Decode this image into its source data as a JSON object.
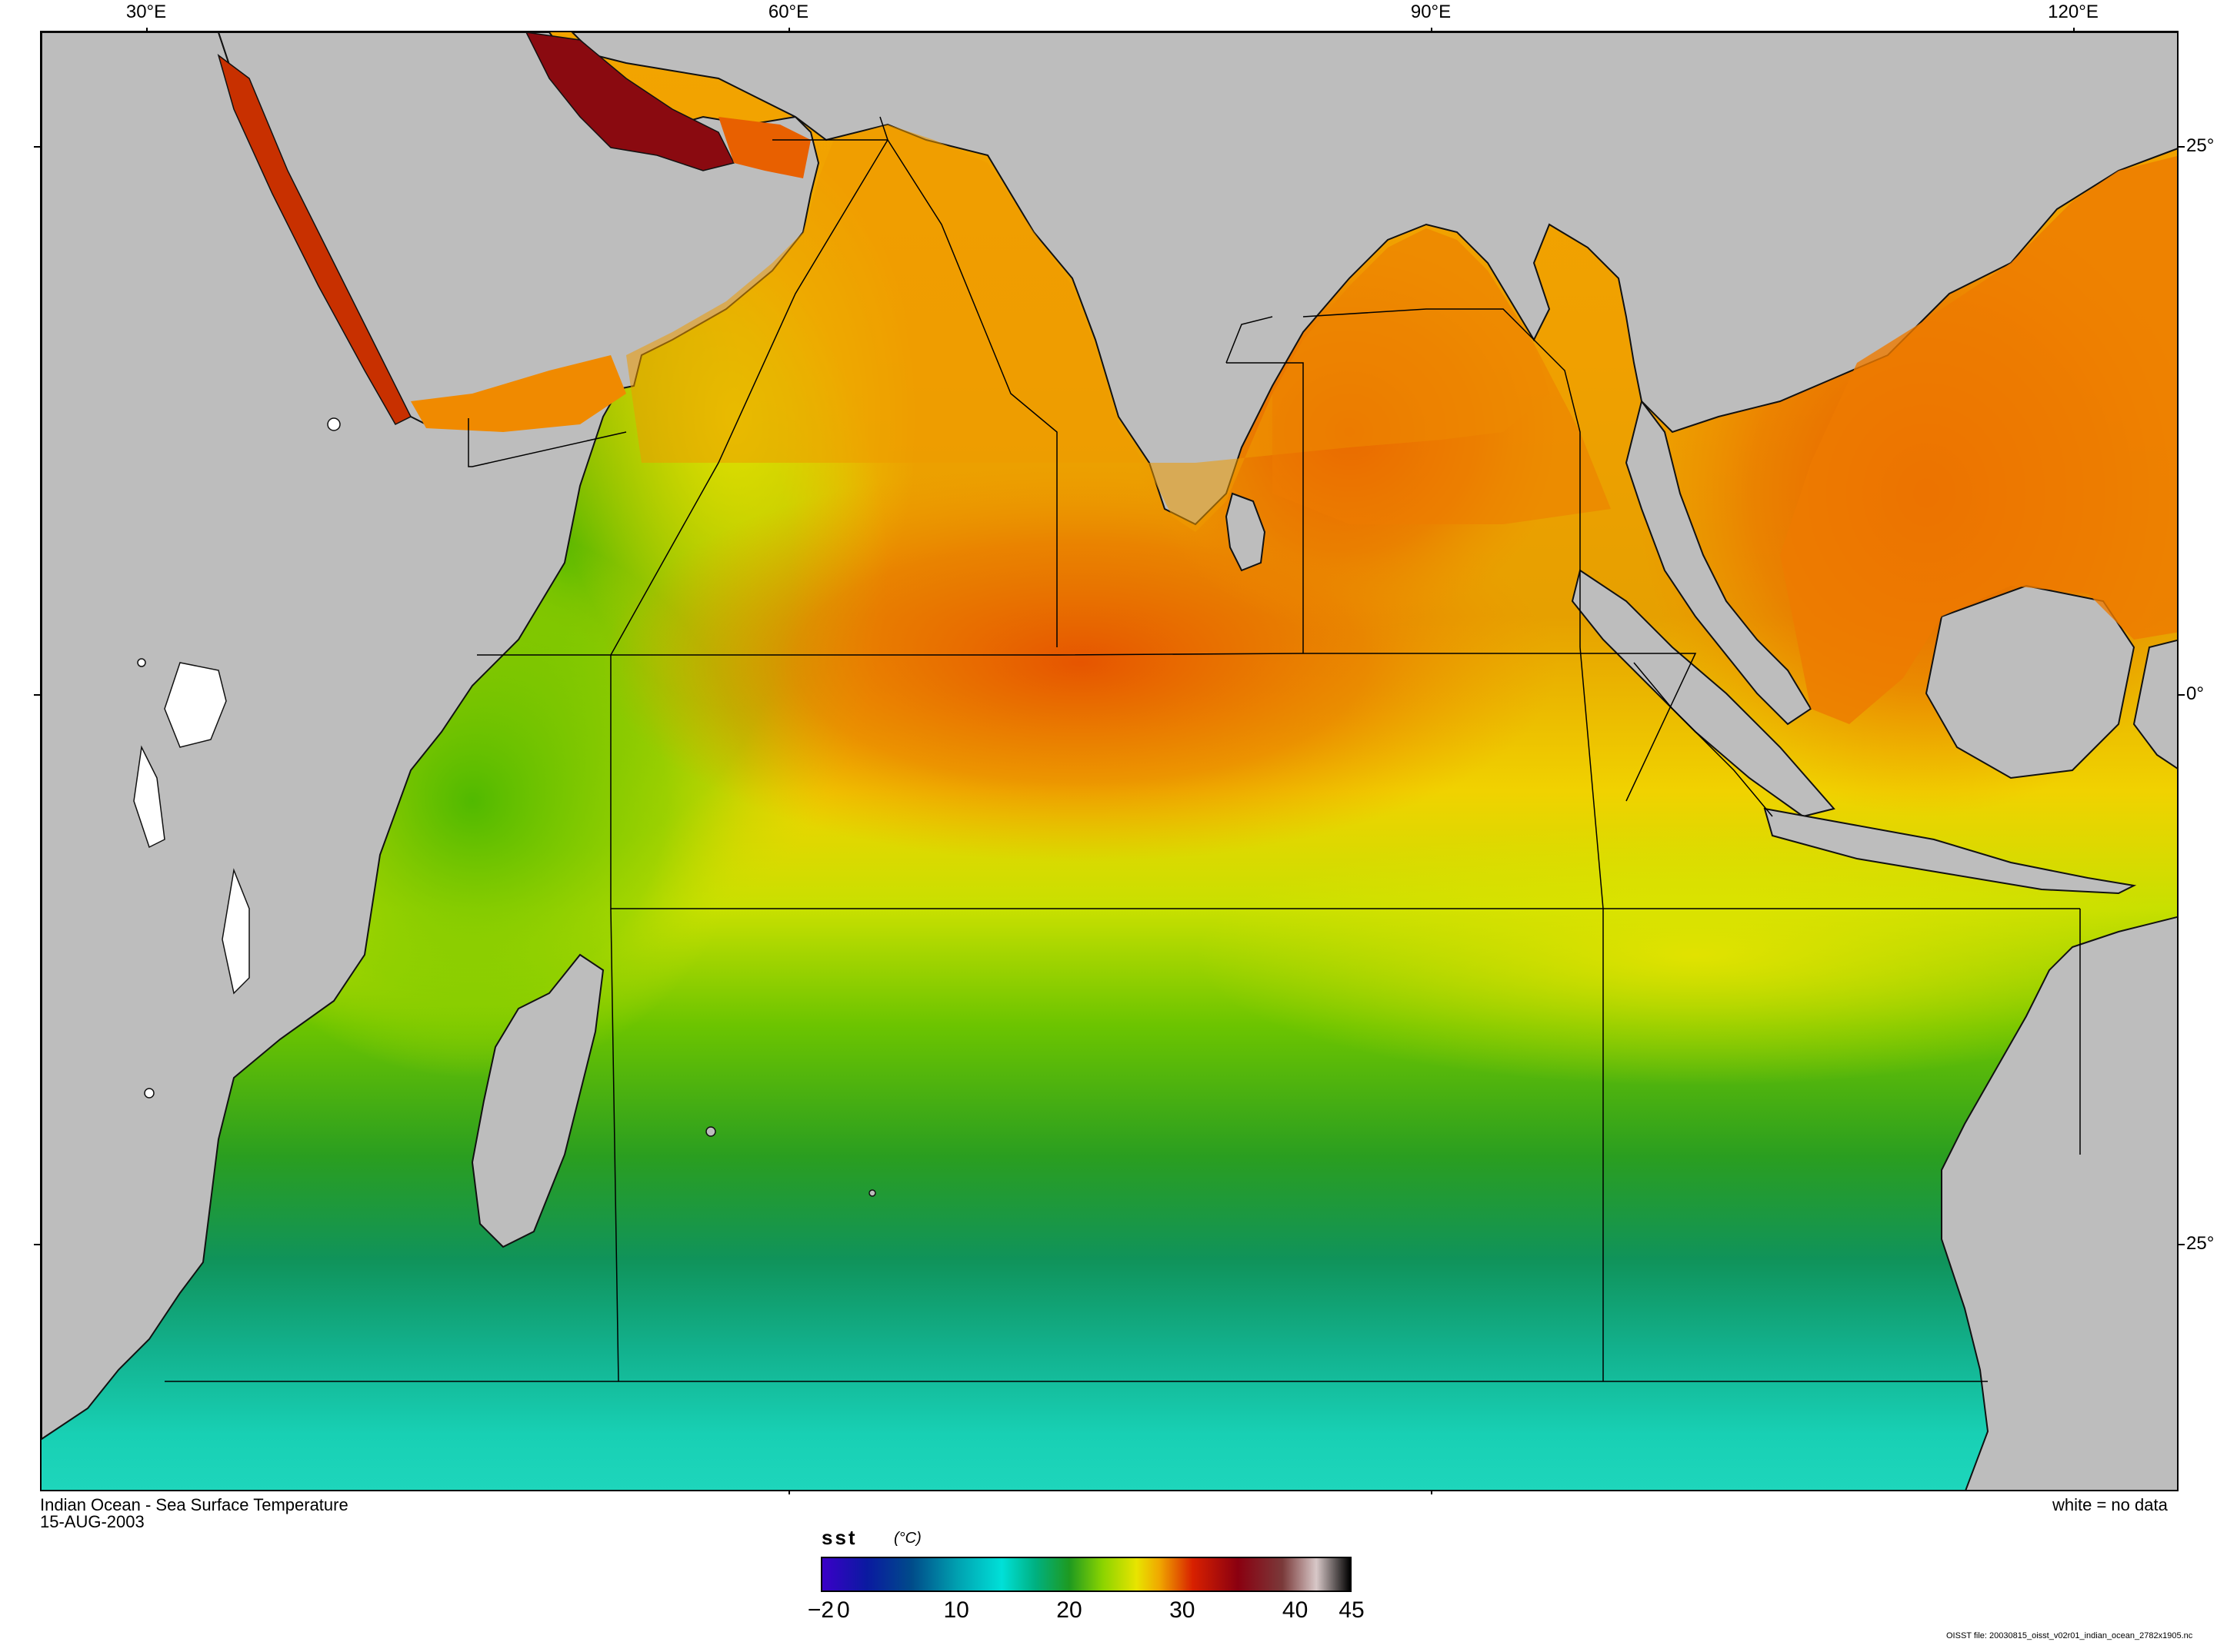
{
  "map": {
    "lon_labels": [
      "30°E",
      "60°E",
      "90°E",
      "120°E"
    ],
    "lat_labels": [
      "25°",
      "0°",
      "25°"
    ],
    "land_color": "#bdbdbd",
    "nodata_color": "#ffffff"
  },
  "captions": {
    "title": "Indian Ocean - Sea Surface Temperature",
    "date": "15-AUG-2003",
    "nodata_note": "white = no data",
    "file": "OISST file: 20030815_oisst_v02r01_indian_ocean_2782x1905.nc"
  },
  "colorbar": {
    "variable": "sst",
    "unit": "(°C)",
    "tick_labels": [
      "−2",
      "0",
      "10",
      "20",
      "30",
      "40",
      "45"
    ],
    "tick_values": [
      -2,
      0,
      10,
      20,
      30,
      40,
      45
    ],
    "range": [
      -2,
      45
    ],
    "stops": [
      {
        "v": -2,
        "c": "#3a00c8"
      },
      {
        "v": 2,
        "c": "#0a1aa0"
      },
      {
        "v": 6,
        "c": "#004c8a"
      },
      {
        "v": 10,
        "c": "#00a0b0"
      },
      {
        "v": 14,
        "c": "#00e0d8"
      },
      {
        "v": 17,
        "c": "#00b080"
      },
      {
        "v": 20,
        "c": "#1e9a20"
      },
      {
        "v": 23,
        "c": "#8cd400"
      },
      {
        "v": 26,
        "c": "#e8e400"
      },
      {
        "v": 28,
        "c": "#f0a800"
      },
      {
        "v": 31,
        "c": "#d82000"
      },
      {
        "v": 35,
        "c": "#8a0010"
      },
      {
        "v": 39,
        "c": "#7a3a3a"
      },
      {
        "v": 42,
        "c": "#d8c8c8"
      },
      {
        "v": 45,
        "c": "#000000"
      }
    ]
  }
}
